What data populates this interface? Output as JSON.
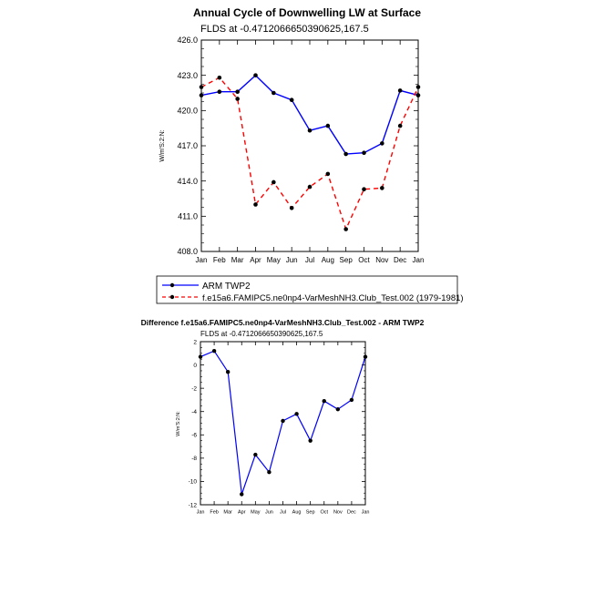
{
  "chart_data": [
    {
      "type": "line",
      "title": "Annual Cycle of Downwelling LW at Surface",
      "subtitle": "FLDS at -0.4712066650390625,167.5",
      "xlabel": "",
      "ylabel": "W/m′S:2:N:",
      "categories": [
        "Jan",
        "Feb",
        "Mar",
        "Apr",
        "May",
        "Jun",
        "Jul",
        "Aug",
        "Sep",
        "Oct",
        "Nov",
        "Dec",
        "Jan"
      ],
      "ylim": [
        408.0,
        426.0
      ],
      "yticks": [
        "408.0",
        "411.0",
        "414.0",
        "417.0",
        "420.0",
        "423.0",
        "426.0"
      ],
      "legend_position": "bottom-left",
      "series": [
        {
          "name": "ARM TWP2",
          "color": "#0000ff",
          "dash": "solid",
          "values": [
            421.3,
            421.6,
            421.6,
            423.0,
            421.5,
            420.9,
            418.3,
            418.7,
            416.3,
            416.4,
            417.2,
            421.7,
            421.3
          ]
        },
        {
          "name": "f.e15a6.FAMIPC5.ne0np4-VarMeshNH3.Club_Test.002 (1979-1981)",
          "color": "#ff0000",
          "dash": "dashed",
          "values": [
            422.0,
            422.8,
            421.0,
            412.0,
            413.9,
            411.7,
            413.5,
            414.6,
            409.9,
            413.3,
            413.4,
            418.7,
            422.0
          ]
        }
      ]
    },
    {
      "type": "line",
      "title": "Difference f.e15a6.FAMIPC5.ne0np4-VarMeshNH3.Club_Test.002 - ARM TWP2",
      "subtitle": "FLDS at -0.4712066650390625,167.5",
      "xlabel": "",
      "ylabel": "W/m′S:2:N:",
      "categories": [
        "Jan",
        "Feb",
        "Mar",
        "Apr",
        "May",
        "Jun",
        "Jul",
        "Aug",
        "Sep",
        "Oct",
        "Nov",
        "Dec",
        "Jan"
      ],
      "ylim": [
        -12,
        2
      ],
      "yticks": [
        "-12",
        "-10",
        "-8",
        "-6",
        "-4",
        "-2",
        "0",
        "2"
      ],
      "series": [
        {
          "name": "Difference",
          "color": "#0000ff",
          "dash": "solid",
          "values": [
            0.7,
            1.2,
            -0.6,
            -11.1,
            -7.7,
            -9.2,
            -4.8,
            -4.2,
            -6.5,
            -3.1,
            -3.8,
            -3.0,
            0.7
          ]
        }
      ]
    }
  ]
}
